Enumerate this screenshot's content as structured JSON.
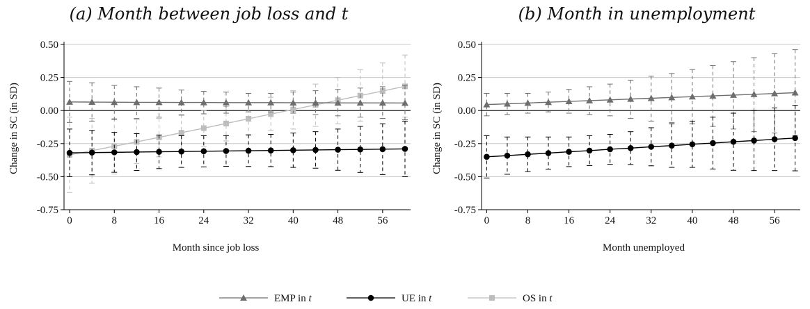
{
  "legend": {
    "emp_label": "EMP in ",
    "ue_label": "UE in ",
    "os_label": "OS in ",
    "italic_t": "t"
  },
  "colors": {
    "emp": "#6e6e6e",
    "ue": "#000000",
    "os": "#bdbdbd",
    "zero": "#000000",
    "grid": "#c8c8c8"
  },
  "chart_data": [
    {
      "type": "line",
      "title": "(a) Month between job loss and t",
      "xlabel": "Month since job loss",
      "ylabel": "Change in SC (in SD)",
      "xticks": [
        0,
        8,
        16,
        24,
        32,
        40,
        48,
        56
      ],
      "yticks": [
        "0.50",
        "0.25",
        "0.00",
        "-0.25",
        "-0.50",
        "-0.75"
      ],
      "xlim": [
        -1,
        61
      ],
      "ylim": [
        -0.75,
        0.5
      ],
      "x": [
        0,
        4,
        8,
        12,
        16,
        20,
        24,
        28,
        32,
        36,
        40,
        44,
        48,
        52,
        56,
        60
      ],
      "series": [
        {
          "name": "EMP in t",
          "marker": "triangle",
          "values": [
            0.065,
            0.064,
            0.063,
            0.062,
            0.062,
            0.061,
            0.061,
            0.06,
            0.06,
            0.06,
            0.059,
            0.059,
            0.058,
            0.058,
            0.058,
            0.057
          ],
          "upper": [
            0.22,
            0.21,
            0.19,
            0.18,
            0.17,
            0.155,
            0.145,
            0.14,
            0.13,
            0.13,
            0.14,
            0.15,
            0.16,
            0.17,
            0.18,
            0.19
          ],
          "lower": [
            -0.09,
            -0.08,
            -0.07,
            -0.06,
            -0.05,
            -0.035,
            -0.025,
            -0.02,
            -0.01,
            -0.01,
            -0.02,
            -0.03,
            -0.04,
            -0.05,
            -0.06,
            -0.07
          ]
        },
        {
          "name": "UE in t",
          "marker": "circle",
          "values": [
            -0.32,
            -0.318,
            -0.316,
            -0.314,
            -0.312,
            -0.31,
            -0.308,
            -0.306,
            -0.304,
            -0.302,
            -0.3,
            -0.298,
            -0.296,
            -0.294,
            -0.292,
            -0.29
          ],
          "upper": [
            -0.14,
            -0.15,
            -0.165,
            -0.175,
            -0.185,
            -0.19,
            -0.19,
            -0.19,
            -0.185,
            -0.18,
            -0.17,
            -0.16,
            -0.14,
            -0.12,
            -0.1,
            -0.08
          ],
          "lower": [
            -0.5,
            -0.486,
            -0.467,
            -0.453,
            -0.439,
            -0.43,
            -0.426,
            -0.422,
            -0.423,
            -0.424,
            -0.43,
            -0.436,
            -0.452,
            -0.468,
            -0.484,
            -0.5
          ]
        },
        {
          "name": "OS in t",
          "marker": "square",
          "values": [
            -0.335,
            -0.303,
            -0.27,
            -0.237,
            -0.203,
            -0.168,
            -0.133,
            -0.098,
            -0.062,
            -0.027,
            0.008,
            0.043,
            0.078,
            0.113,
            0.148,
            0.183
          ],
          "upper": [
            -0.05,
            -0.06,
            -0.06,
            -0.07,
            -0.06,
            -0.03,
            0.0,
            0.03,
            0.06,
            0.1,
            0.15,
            0.2,
            0.25,
            0.31,
            0.36,
            0.42
          ],
          "lower": [
            -0.62,
            -0.55,
            -0.48,
            -0.4,
            -0.35,
            -0.3,
            -0.27,
            -0.23,
            -0.18,
            -0.15,
            -0.14,
            -0.12,
            -0.1,
            -0.08,
            -0.06,
            -0.05
          ]
        }
      ]
    },
    {
      "type": "line",
      "title": "(b) Month in unemployment",
      "xlabel": "Month unemployed",
      "ylabel": "Change in SC (in SD)",
      "xticks": [
        0,
        8,
        16,
        24,
        32,
        40,
        48,
        56
      ],
      "yticks": [
        "0.50",
        "0.25",
        "0.00",
        "-0.25",
        "-0.50",
        "-0.75"
      ],
      "xlim": [
        -1,
        61
      ],
      "ylim": [
        -0.75,
        0.5
      ],
      "x": [
        0,
        4,
        8,
        12,
        16,
        20,
        24,
        28,
        32,
        36,
        40,
        44,
        48,
        52,
        56,
        60
      ],
      "series": [
        {
          "name": "EMP in t",
          "marker": "triangle",
          "values": [
            0.045,
            0.051,
            0.057,
            0.063,
            0.069,
            0.075,
            0.081,
            0.087,
            0.093,
            0.099,
            0.105,
            0.111,
            0.117,
            0.123,
            0.129,
            0.135
          ],
          "upper": [
            0.13,
            0.13,
            0.13,
            0.14,
            0.16,
            0.18,
            0.2,
            0.23,
            0.26,
            0.28,
            0.31,
            0.34,
            0.37,
            0.4,
            0.43,
            0.46
          ],
          "lower": [
            -0.04,
            -0.03,
            -0.02,
            -0.01,
            -0.02,
            -0.03,
            -0.04,
            -0.06,
            -0.08,
            -0.09,
            -0.1,
            -0.12,
            -0.14,
            -0.16,
            -0.17,
            -0.19
          ]
        },
        {
          "name": "UE in t",
          "marker": "circle",
          "values": [
            -0.35,
            -0.341,
            -0.331,
            -0.322,
            -0.312,
            -0.303,
            -0.293,
            -0.284,
            -0.274,
            -0.265,
            -0.255,
            -0.246,
            -0.236,
            -0.227,
            -0.217,
            -0.208
          ],
          "upper": [
            -0.19,
            -0.2,
            -0.2,
            -0.2,
            -0.2,
            -0.19,
            -0.18,
            -0.16,
            -0.13,
            -0.1,
            -0.08,
            -0.05,
            -0.02,
            0.0,
            0.02,
            0.04
          ],
          "lower": [
            -0.51,
            -0.482,
            -0.462,
            -0.444,
            -0.424,
            -0.416,
            -0.406,
            -0.408,
            -0.418,
            -0.43,
            -0.43,
            -0.442,
            -0.452,
            -0.454,
            -0.454,
            -0.456
          ]
        }
      ]
    }
  ]
}
